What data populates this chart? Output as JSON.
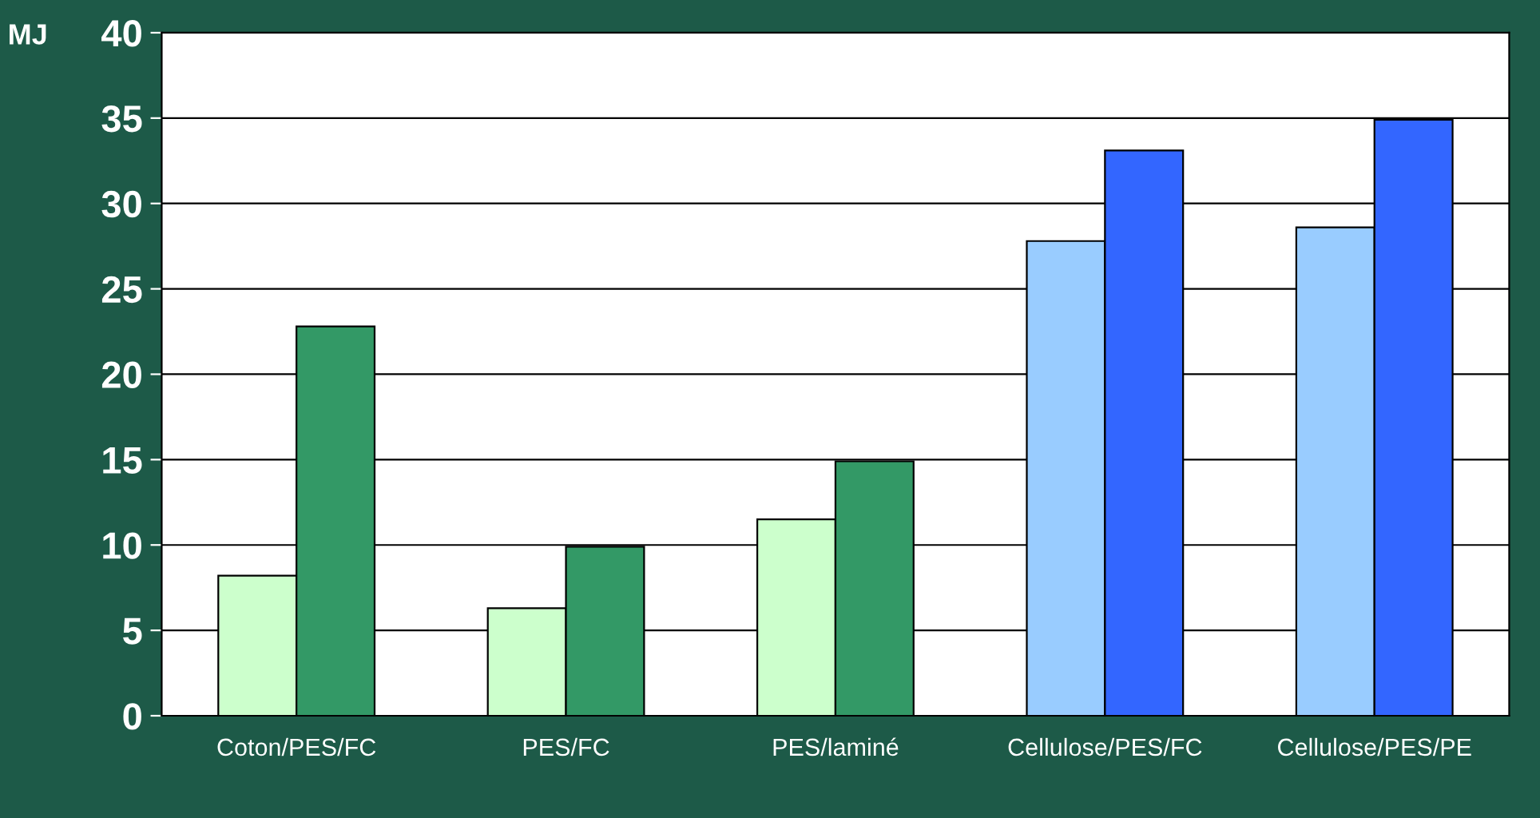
{
  "chart_data": {
    "type": "bar",
    "ylabel": "MJ",
    "categories": [
      "Coton/PES/FC",
      "PES/FC",
      "PES/laminé",
      "Cellulose/PES/FC",
      "Cellulose/PES/PE"
    ],
    "series": [
      {
        "colors": [
          "#ccffcc",
          "#ccffcc",
          "#ccffcc",
          "#99ccff",
          "#99ccff"
        ],
        "values": [
          8.2,
          6.3,
          11.5,
          27.8,
          28.6
        ]
      },
      {
        "colors": [
          "#339966",
          "#339966",
          "#339966",
          "#3366ff",
          "#3366ff"
        ],
        "values": [
          22.8,
          9.9,
          14.9,
          33.1,
          34.9
        ]
      }
    ],
    "ylim": [
      0,
      40
    ],
    "yticks": [
      0,
      5,
      10,
      15,
      20,
      25,
      30,
      35,
      40
    ],
    "grid": "y",
    "legend": false
  }
}
